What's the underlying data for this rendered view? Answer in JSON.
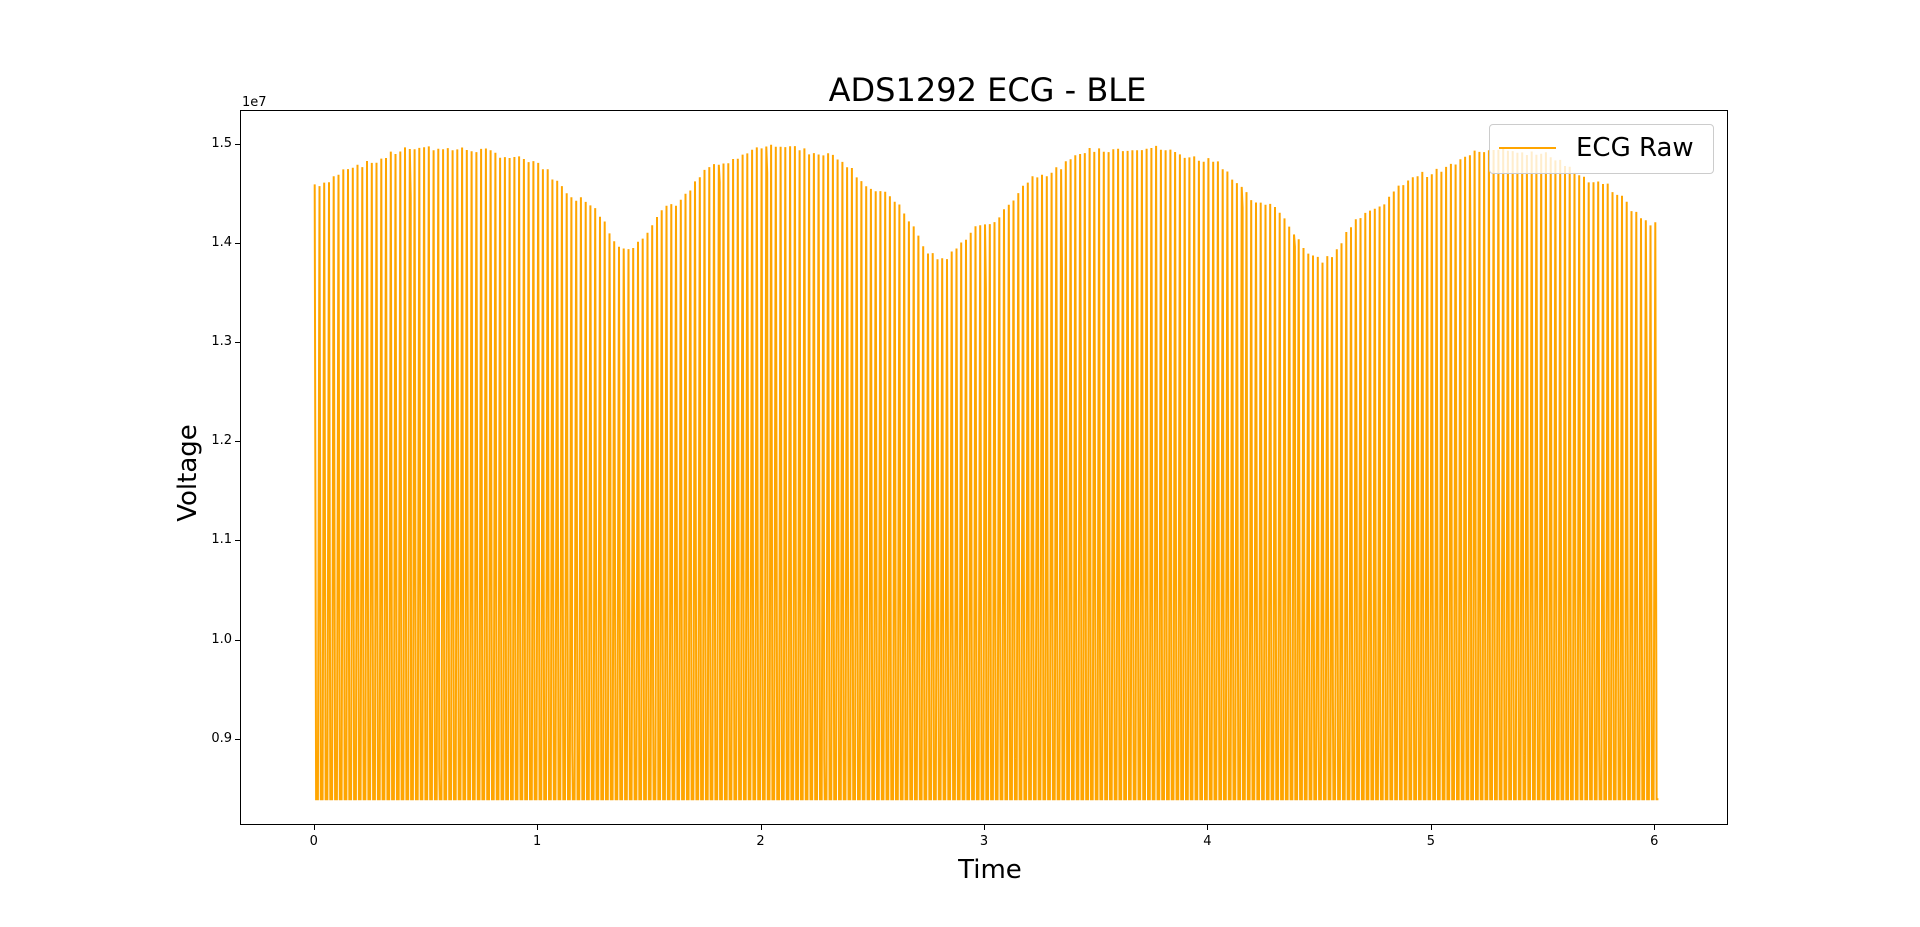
{
  "chart_data": {
    "type": "line",
    "title": "ADS1292 ECG - BLE",
    "xlabel": "Time",
    "ylabel": "Voltage",
    "y_offset_text": "1e7",
    "xlim": [
      -0.33,
      6.33
    ],
    "ylim": [
      0.813,
      1.534
    ],
    "y_scale": 10000000,
    "x_ticks": [
      0,
      1,
      2,
      3,
      4,
      5,
      6
    ],
    "x_tick_labels": [
      "0",
      "1",
      "2",
      "3",
      "4",
      "5",
      "6"
    ],
    "y_ticks": [
      0.9,
      1.0,
      1.1,
      1.2,
      1.3,
      1.4,
      1.5
    ],
    "y_tick_labels": [
      "0.9",
      "1.0",
      "1.1",
      "1.2",
      "1.3",
      "1.4",
      "1.5"
    ],
    "grid": false,
    "legend_position": "upper right",
    "series": [
      {
        "name": "ECG Raw",
        "color": "#FFA500",
        "description": "Dense oscillation (~47 cycles per time unit) between a floor of ~0.84e7 and an upper envelope",
        "floor": 0.84,
        "envelope": {
          "x": [
            0.0,
            0.2,
            0.45,
            0.7,
            0.95,
            1.2,
            1.4,
            1.6,
            1.8,
            2.05,
            2.3,
            2.55,
            2.8,
            3.0,
            3.25,
            3.5,
            3.73,
            4.0,
            4.25,
            4.51,
            4.7,
            4.95,
            5.3,
            5.5,
            5.75,
            6.0
          ],
          "y": [
            1.46,
            1.48,
            1.497,
            1.495,
            1.485,
            1.445,
            1.395,
            1.44,
            1.48,
            1.5,
            1.49,
            1.45,
            1.385,
            1.42,
            1.47,
            1.495,
            1.497,
            1.485,
            1.44,
            1.384,
            1.43,
            1.47,
            1.497,
            1.49,
            1.46,
            1.42
          ]
        },
        "samples_per_unit": 47
      }
    ]
  }
}
